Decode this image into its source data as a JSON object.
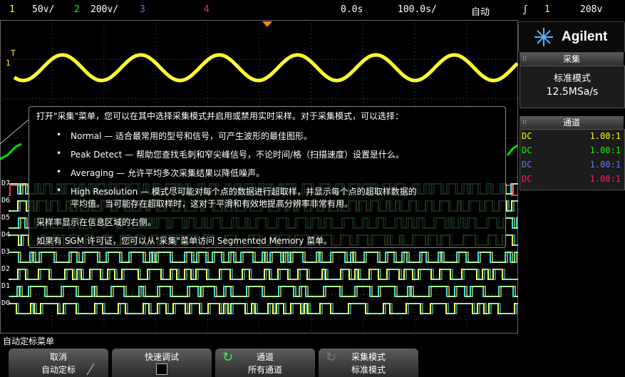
{
  "topbar": {
    "ch1_num": "1",
    "ch1_scale": "50v/",
    "ch2_num": "2",
    "ch2_scale": "200v/",
    "ch3_num": "3",
    "ch4_num": "4",
    "time_offset": "0.0s",
    "time_scale": "100.0s/",
    "trigger_mode": "自动",
    "trigger_ch": "1",
    "trigger_level": "208v"
  },
  "brand": "Agilent",
  "acquire": {
    "title": "采集",
    "mode": "标准模式",
    "rate": "12.5MSa/s"
  },
  "channels": {
    "title": "通道",
    "rows": [
      {
        "coupling": "DC",
        "value": "1.00:1",
        "color": "#ffff00"
      },
      {
        "coupling": "DC",
        "value": "1.00:1",
        "color": "#00ff00"
      },
      {
        "coupling": "DC",
        "value": "1.00:1",
        "color": "#5e7bff"
      },
      {
        "coupling": "DC",
        "value": "1.00:1",
        "color": "#ff2060"
      }
    ]
  },
  "digital_labels": [
    "D7",
    "D6",
    "D5",
    "D4",
    "D3",
    "D2",
    "D1",
    "D0"
  ],
  "trace_colors": {
    "ch1": "#ffff30",
    "ch2": "#00e000",
    "dig_a": "#40e0e0",
    "dig_b": "#ffff60",
    "ch4": "#ff3050"
  },
  "help": {
    "intro": "打开\"采集\"菜单，您可以在其中选择采集模式并启用或禁用实时采样。对于采集模式，可以选择：",
    "bullets": [
      "Normal — 适合最常用的型号和信号，可产生波形的最佳图形。",
      "Peak Detect — 帮助您查找毛刺和窄尖峰信号，不论时间/格（扫描速度）设置是什么。",
      "Averaging — 允许平均多次采集结果以降低噪声。",
      "High Resolution — 模式尽可能对每个点的数据进行超取样，并显示每个点的超取样数据的",
      "平均值。当可能存在超取样时，这对于平滑和有效地提高分辨率非常有用。"
    ],
    "rate_note": "采样率显示在信息区域的右侧。",
    "sgm_note": "如果有 SGM 许可证，您可以从\"采集\"菜单访问 Segmented Memory 菜单。"
  },
  "menu": {
    "title": "自动定标菜单",
    "softkeys": [
      {
        "line1": "取消",
        "line2": "自动定标"
      },
      {
        "line1": "快速调试",
        "line2": ""
      },
      {
        "line1": "通道",
        "line2": "所有通道"
      },
      {
        "line1": "采集模式",
        "line2": "标准模式"
      }
    ]
  }
}
